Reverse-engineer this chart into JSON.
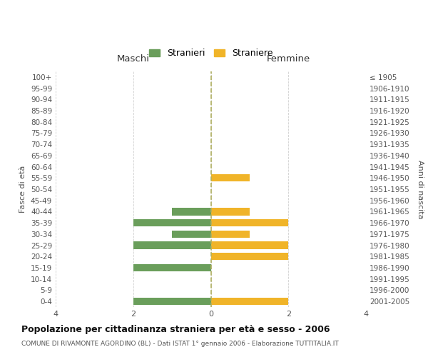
{
  "age_groups": [
    "0-4",
    "5-9",
    "10-14",
    "15-19",
    "20-24",
    "25-29",
    "30-34",
    "35-39",
    "40-44",
    "45-49",
    "50-54",
    "55-59",
    "60-64",
    "65-69",
    "70-74",
    "75-79",
    "80-84",
    "85-89",
    "90-94",
    "95-99",
    "100+"
  ],
  "birth_years": [
    "2001-2005",
    "1996-2000",
    "1991-1995",
    "1986-1990",
    "1981-1985",
    "1976-1980",
    "1971-1975",
    "1966-1970",
    "1961-1965",
    "1956-1960",
    "1951-1955",
    "1946-1950",
    "1941-1945",
    "1936-1940",
    "1931-1935",
    "1926-1930",
    "1921-1925",
    "1916-1920",
    "1911-1915",
    "1906-1910",
    "≤ 1905"
  ],
  "maschi": [
    2,
    0,
    0,
    2,
    0,
    2,
    1,
    2,
    1,
    0,
    0,
    0,
    0,
    0,
    0,
    0,
    0,
    0,
    0,
    0,
    0
  ],
  "femmine": [
    2,
    0,
    0,
    0,
    2,
    2,
    1,
    2,
    1,
    0,
    0,
    1,
    0,
    0,
    0,
    0,
    0,
    0,
    0,
    0,
    0
  ],
  "color_maschi": "#6a9e5b",
  "color_femmine": "#f0b429",
  "title": "Popolazione per cittadinanza straniera per età e sesso - 2006",
  "subtitle": "COMUNE DI RIVAMONTE AGORDINO (BL) - Dati ISTAT 1° gennaio 2006 - Elaborazione TUTTITALIA.IT",
  "xlabel_left": "Maschi",
  "xlabel_right": "Femmine",
  "ylabel_left": "Fasce di età",
  "ylabel_right": "Anni di nascita",
  "legend_maschi": "Stranieri",
  "legend_femmine": "Straniere",
  "xlim": 4,
  "background_color": "#ffffff",
  "grid_color": "#d0d0d0",
  "bar_height": 0.65
}
